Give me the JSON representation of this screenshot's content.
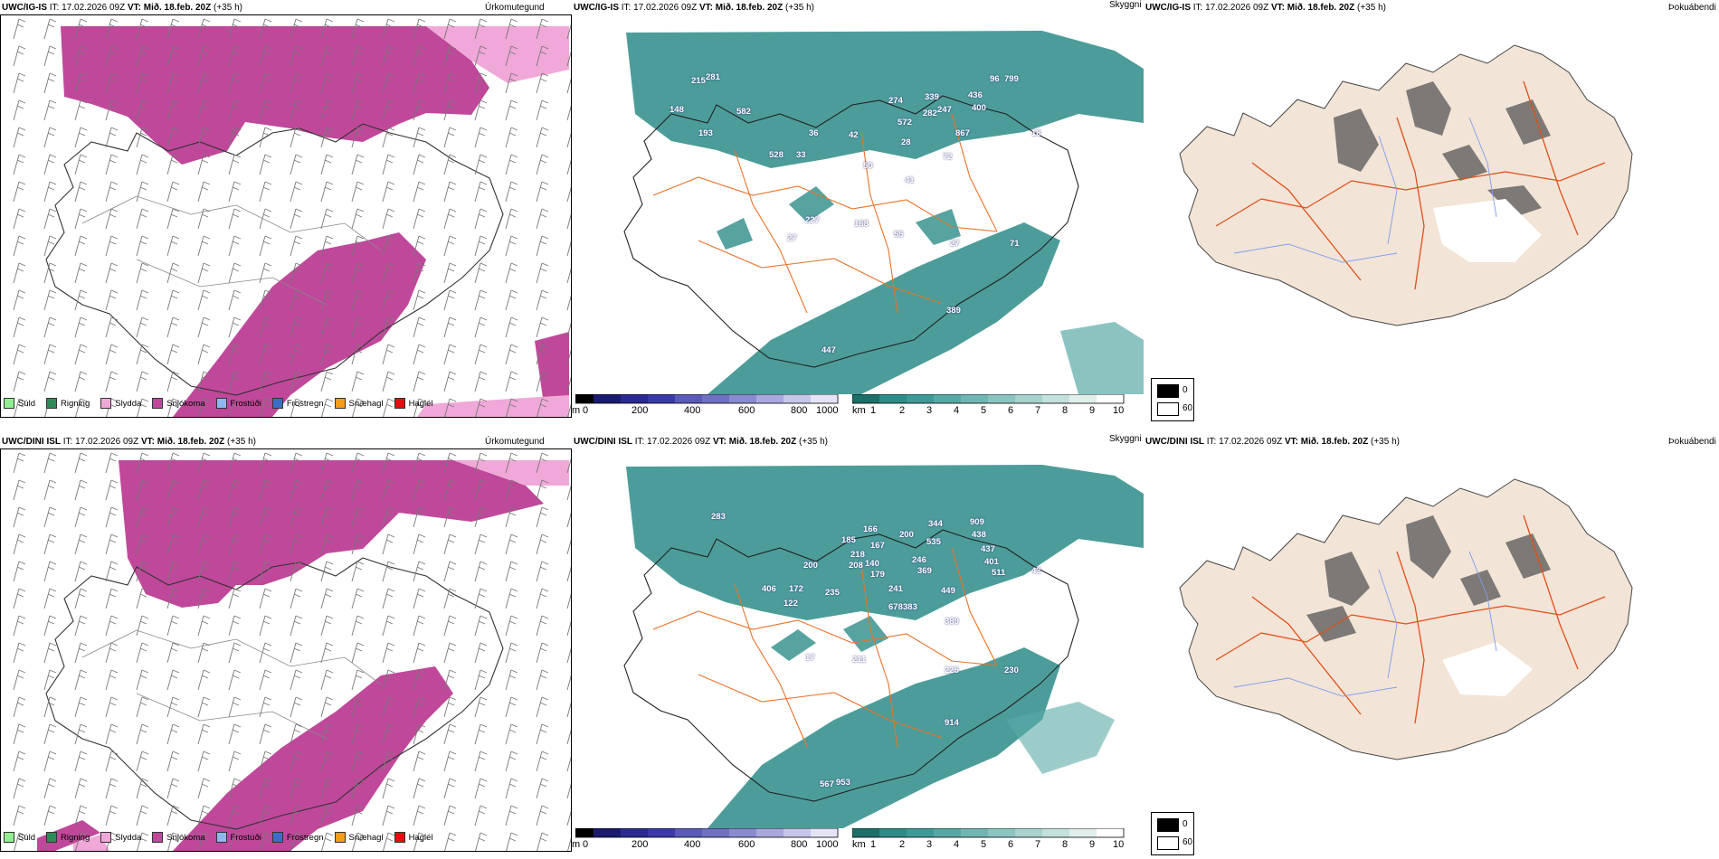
{
  "rows": [
    {
      "model": "UWC/IG-IS",
      "it_label": "IT:",
      "it_value": "17.02.2026 09Z",
      "vt_label": "VT:",
      "vt_value": "Mið. 18.feb. 20Z",
      "lead": "(+35 h)",
      "titles": {
        "precip": "Úrkomutegund",
        "vis": "Skyggni",
        "fog": "Þokuábendi"
      },
      "visibility_labels": [
        "215",
        "281",
        "148",
        "193",
        "582",
        "528",
        "36",
        "33",
        "42",
        "274",
        "339",
        "96",
        "799",
        "572",
        "282",
        "247",
        "436",
        "400",
        "867",
        "18",
        "50",
        "41",
        "72",
        "28",
        "227",
        "27",
        "168",
        "55",
        "27",
        "71",
        "389",
        "447"
      ]
    },
    {
      "model": "UWC/DINI ISL",
      "it_label": "IT:",
      "it_value": "17.02.2026 09Z",
      "vt_label": "VT:",
      "vt_value": "Mið. 18.feb. 20Z",
      "lead": "(+35 h)",
      "titles": {
        "precip": "Úrkomutegund",
        "vis": "Skyggni",
        "fog": "Þokuábendi"
      },
      "visibility_labels": [
        "283",
        "166",
        "185",
        "200",
        "167",
        "218",
        "208",
        "140",
        "179",
        "200",
        "344",
        "535",
        "909",
        "438",
        "437",
        "401",
        "511",
        "406",
        "172",
        "122",
        "235",
        "241",
        "678",
        "383",
        "449",
        "389",
        "211",
        "17",
        "225",
        "230",
        "914",
        "567",
        "953",
        "246",
        "369",
        "43"
      ]
    }
  ],
  "precip_legend": [
    {
      "label": "Súld",
      "color": "#90ee90"
    },
    {
      "label": "Rigning",
      "color": "#2e8b57"
    },
    {
      "label": "Slydda",
      "color": "#f0a8d8"
    },
    {
      "label": "Snjókoma",
      "color": "#c0489a"
    },
    {
      "label": "Frostúði",
      "color": "#8fb8f0"
    },
    {
      "label": "Frostregn",
      "color": "#3a6ec8"
    },
    {
      "label": "Snæhagl",
      "color": "#f39c1a"
    },
    {
      "label": "Haglél",
      "color": "#e01010"
    }
  ],
  "ceiling_bar": {
    "unit": "m",
    "ticks": [
      "0",
      "200",
      "400",
      "600",
      "800",
      "1000"
    ]
  },
  "visibility_bar": {
    "unit": "km",
    "ticks": [
      "1",
      "2",
      "3",
      "4",
      "5",
      "6",
      "7",
      "8",
      "9",
      "10"
    ]
  },
  "fog_legend": {
    "low": "0",
    "high": "60"
  },
  "colors": {
    "snow": "#c0489a",
    "sleet": "#f0a8d8",
    "teal": "#2d8c88",
    "land": "#f2e4d6",
    "roads": "#e8732a",
    "fog_roads": "#e0501a",
    "rivers": "#7f9cf0"
  }
}
